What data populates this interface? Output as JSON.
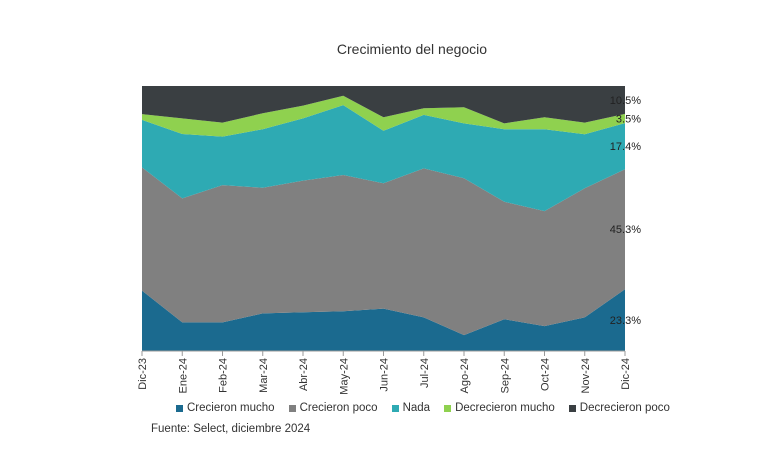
{
  "chart_data": {
    "type": "area",
    "stacked": true,
    "normalized": true,
    "title": "Crecimiento del negocio",
    "xlabel": "",
    "ylabel": "",
    "ylim": [
      0,
      100
    ],
    "categories": [
      "Dic-23",
      "Ene-24",
      "Feb-24",
      "Mar-24",
      "Abr-24",
      "May-24",
      "Jun-24",
      "Jul-24",
      "Ago-24",
      "Sep-24",
      "Oct-24",
      "Nov-24",
      "Dic-24"
    ],
    "series": [
      {
        "name": "Crecieron mucho",
        "color": "#1b6a8f",
        "values": [
          22.8,
          10.8,
          10.8,
          14.2,
          14.6,
          15.0,
          16.0,
          12.7,
          6.0,
          12.0,
          9.4,
          12.7,
          23.3
        ]
      },
      {
        "name": "Crecieron poco",
        "color": "#808080",
        "values": [
          46.5,
          46.8,
          51.8,
          47.4,
          49.7,
          51.4,
          47.3,
          56.2,
          59.2,
          44.3,
          43.4,
          48.7,
          45.3
        ]
      },
      {
        "name": "Nada",
        "color": "#2eaab3",
        "values": [
          17.9,
          24.3,
          18.3,
          22.1,
          23.5,
          26.4,
          19.8,
          20.2,
          20.7,
          27.4,
          30.9,
          20.4,
          17.4
        ]
      },
      {
        "name": "Decrecieron mucho",
        "color": "#8fd14f",
        "values": [
          2.2,
          5.9,
          5.3,
          6.0,
          4.8,
          3.5,
          5.1,
          2.5,
          6.1,
          2.2,
          4.5,
          4.4,
          3.5
        ]
      },
      {
        "name": "Decrecieron poco",
        "color": "#3a3f42",
        "values": [
          10.6,
          12.2,
          13.8,
          10.3,
          7.4,
          3.7,
          11.8,
          8.4,
          8.0,
          14.1,
          11.8,
          13.8,
          10.5
        ]
      }
    ],
    "data_labels": [
      "23.3%",
      "45.3%",
      "17.4%",
      "3.5%",
      "10.5%"
    ],
    "legend_position": "bottom",
    "grid": false
  },
  "source": "Fuente: Select, diciembre 2024"
}
